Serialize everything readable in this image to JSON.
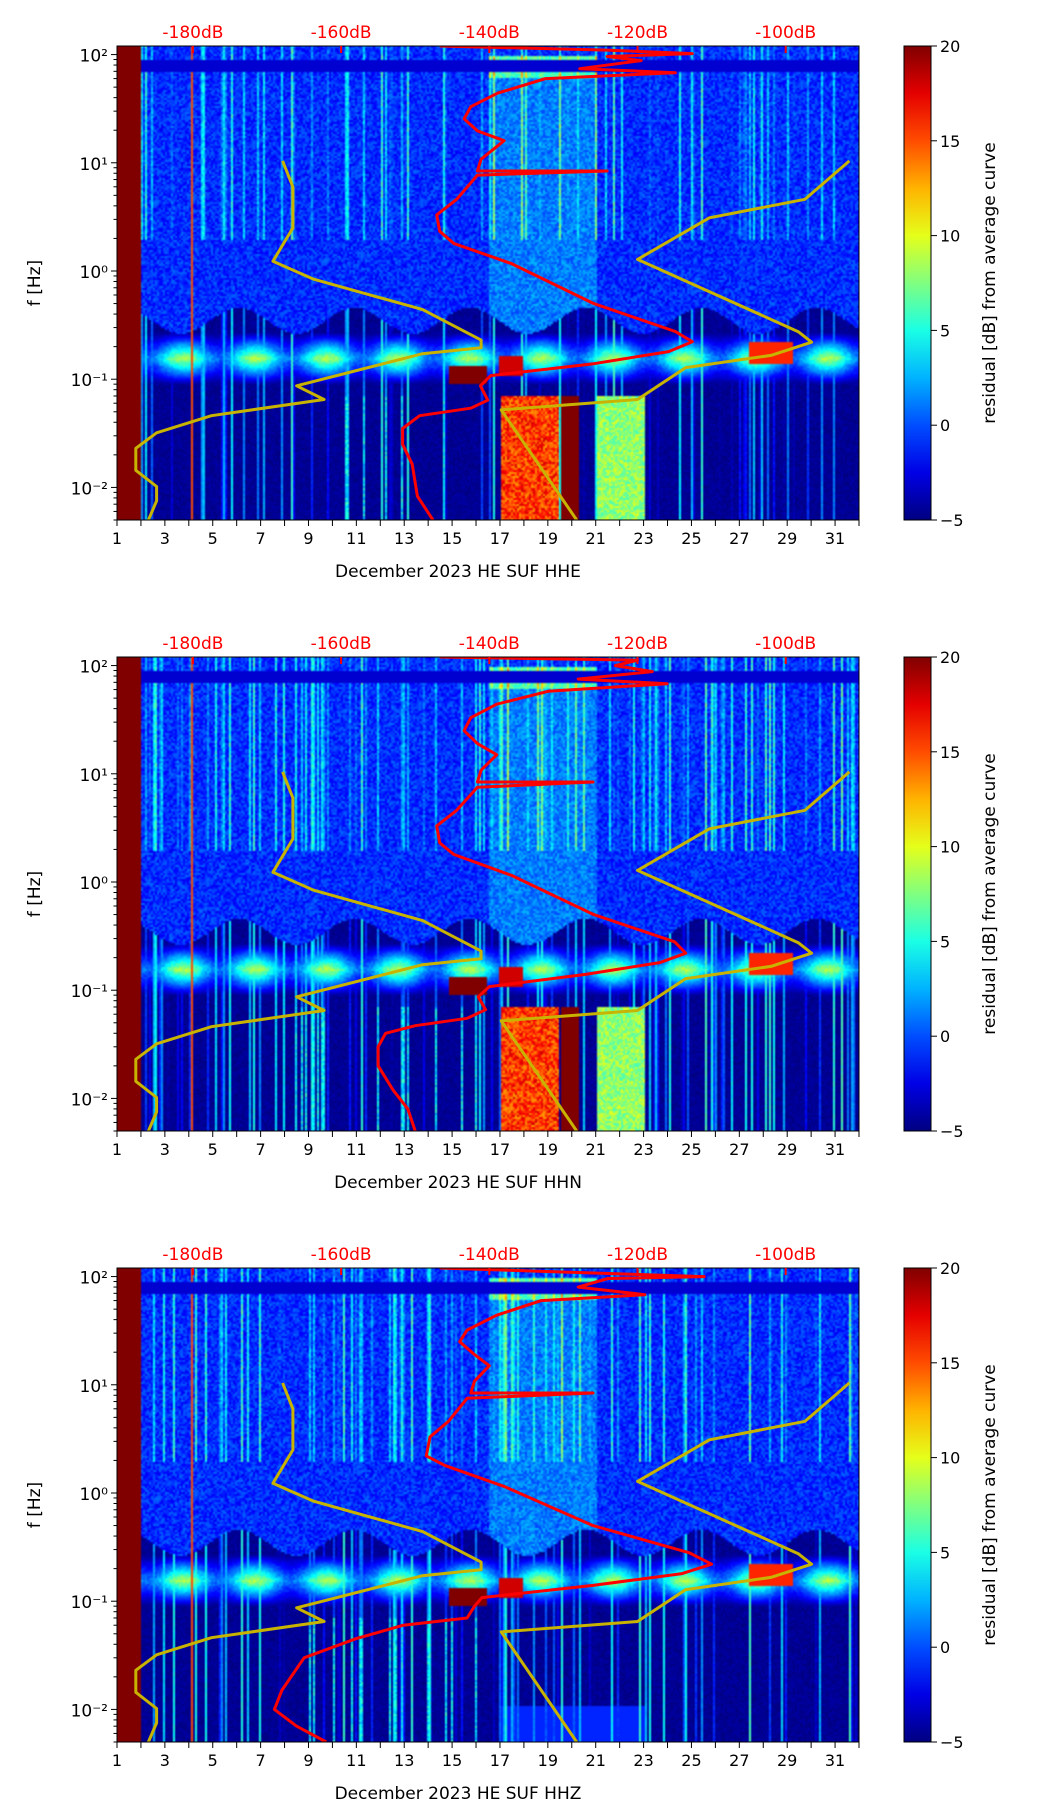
{
  "chart_data": [
    {
      "type": "heatmap",
      "title": "",
      "xlabel": "December 2023 HE SUF  HHE",
      "ylabel": "f [Hz]",
      "x_ticks": [
        "1",
        "3",
        "5",
        "7",
        "9",
        "11",
        "13",
        "15",
        "17",
        "19",
        "21",
        "23",
        "25",
        "27",
        "29",
        "31"
      ],
      "xlim": [
        1,
        32
      ],
      "y_ticks": [
        "10²",
        "10¹",
        "10⁰",
        "10⁻¹",
        "10⁻²"
      ],
      "ylim": [
        0.005,
        120
      ],
      "y_scale": "log",
      "top_axis_ticks": [
        "-180dB",
        "-160dB",
        "-140dB",
        "-120dB",
        "-100dB"
      ],
      "top_axis_range_db": [
        -180,
        -100
      ],
      "colorbar": {
        "label": "residual [dB] from average curve",
        "ticks": [
          "20",
          "15",
          "10",
          "5",
          "0",
          "−5"
        ],
        "range": [
          -5,
          20
        ],
        "colormap": "jet"
      },
      "psd_curve": {
        "color": "#ff0000",
        "points_db_hz": [
          [
            -146.7,
            120
          ],
          [
            -124.1,
            110
          ],
          [
            -112.6,
            102
          ],
          [
            -124.1,
            96
          ],
          [
            -119.5,
            88
          ],
          [
            -127.8,
            74
          ],
          [
            -114.9,
            68
          ],
          [
            -132.4,
            60
          ],
          [
            -138.9,
            44
          ],
          [
            -142.5,
            33
          ],
          [
            -143.4,
            25.5
          ],
          [
            -141.6,
            19.7
          ],
          [
            -138,
            16
          ],
          [
            -141.1,
            10.8
          ],
          [
            -141.6,
            8.4
          ],
          [
            -124.1,
            8.4
          ],
          [
            -141.6,
            7.7
          ],
          [
            -144.4,
            4.6
          ],
          [
            -147.1,
            3.3
          ],
          [
            -146.7,
            2.33
          ],
          [
            -144.8,
            1.8
          ],
          [
            -137,
            1.17
          ],
          [
            -125.9,
            0.5
          ],
          [
            -114.9,
            0.276
          ],
          [
            -112.6,
            0.222
          ],
          [
            -115.8,
            0.18
          ],
          [
            -125.9,
            0.139
          ],
          [
            -139.8,
            0.108
          ],
          [
            -141.2,
            0.087
          ],
          [
            -140.2,
            0.064
          ],
          [
            -142.5,
            0.054
          ],
          [
            -149.4,
            0.046
          ],
          [
            -151.7,
            0.035
          ],
          [
            -151.7,
            0.025
          ],
          [
            -150.4,
            0.0164
          ],
          [
            -149.7,
            0.0083
          ],
          [
            -147.6,
            0.005
          ]
        ]
      }
    },
    {
      "type": "heatmap",
      "title": "",
      "xlabel": "December 2023 HE SUF  HHN",
      "ylabel": "f [Hz]",
      "x_ticks": [
        "1",
        "3",
        "5",
        "7",
        "9",
        "11",
        "13",
        "15",
        "17",
        "19",
        "21",
        "23",
        "25",
        "27",
        "29",
        "31"
      ],
      "xlim": [
        1,
        32
      ],
      "y_ticks": [
        "10²",
        "10¹",
        "10⁰",
        "10⁻¹",
        "10⁻²"
      ],
      "ylim": [
        0.005,
        120
      ],
      "y_scale": "log",
      "top_axis_ticks": [
        "-180dB",
        "-160dB",
        "-140dB",
        "-120dB",
        "-100dB"
      ],
      "top_axis_range_db": [
        -180,
        -100
      ],
      "colorbar": {
        "label": "residual [dB] from average curve",
        "ticks": [
          "20",
          "15",
          "10",
          "5",
          "0",
          "−5"
        ],
        "range": [
          -5,
          20
        ],
        "colormap": "jet"
      },
      "psd_curve": {
        "color": "#ff0000",
        "points_db_hz": [
          [
            -146.7,
            120
          ],
          [
            -120,
            112
          ],
          [
            -123,
            100
          ],
          [
            -118,
            88
          ],
          [
            -128,
            75
          ],
          [
            -116,
            68
          ],
          [
            -132,
            58
          ],
          [
            -139,
            44
          ],
          [
            -142.5,
            33
          ],
          [
            -143.4,
            25
          ],
          [
            -141.6,
            19
          ],
          [
            -139,
            15
          ],
          [
            -141.1,
            10.8
          ],
          [
            -141.6,
            8.4
          ],
          [
            -126,
            8.4
          ],
          [
            -141.6,
            7.5
          ],
          [
            -144.4,
            4.6
          ],
          [
            -147.1,
            3.3
          ],
          [
            -146.7,
            2.3
          ],
          [
            -144.8,
            1.8
          ],
          [
            -137,
            1.15
          ],
          [
            -125.9,
            0.5
          ],
          [
            -115,
            0.28
          ],
          [
            -113.5,
            0.22
          ],
          [
            -117,
            0.18
          ],
          [
            -127,
            0.14
          ],
          [
            -140,
            0.108
          ],
          [
            -141.5,
            0.087
          ],
          [
            -140.5,
            0.066
          ],
          [
            -143,
            0.055
          ],
          [
            -150,
            0.047
          ],
          [
            -154,
            0.04
          ],
          [
            -155,
            0.03
          ],
          [
            -155,
            0.02
          ],
          [
            -153,
            0.012
          ],
          [
            -151,
            0.008
          ],
          [
            -150,
            0.005
          ]
        ]
      }
    },
    {
      "type": "heatmap",
      "title": "",
      "xlabel": "December 2023 HE SUF  HHZ",
      "ylabel": "f [Hz]",
      "x_ticks": [
        "1",
        "3",
        "5",
        "7",
        "9",
        "11",
        "13",
        "15",
        "17",
        "19",
        "21",
        "23",
        "25",
        "27",
        "29",
        "31"
      ],
      "xlim": [
        1,
        32
      ],
      "y_ticks": [
        "10²",
        "10¹",
        "10⁰",
        "10⁻¹",
        "10⁻²"
      ],
      "ylim": [
        0.005,
        120
      ],
      "y_scale": "log",
      "top_axis_ticks": [
        "-180dB",
        "-160dB",
        "-140dB",
        "-120dB",
        "-100dB"
      ],
      "top_axis_range_db": [
        -180,
        -100
      ],
      "colorbar": {
        "label": "residual [dB] from average curve",
        "ticks": [
          "20",
          "15",
          "10",
          "5",
          "0",
          "−5"
        ],
        "range": [
          -5,
          20
        ],
        "colormap": "jet"
      },
      "psd_curve": {
        "color": "#ff0000",
        "points_db_hz": [
          [
            -146.7,
            120
          ],
          [
            -111,
            100
          ],
          [
            -124,
            96
          ],
          [
            -128,
            80
          ],
          [
            -119,
            68
          ],
          [
            -133,
            60
          ],
          [
            -139,
            44
          ],
          [
            -143,
            32
          ],
          [
            -144,
            25
          ],
          [
            -142,
            19
          ],
          [
            -140,
            15
          ],
          [
            -142,
            10.8
          ],
          [
            -142.5,
            8.4
          ],
          [
            -126,
            8.4
          ],
          [
            -143,
            7.5
          ],
          [
            -145.5,
            4.6
          ],
          [
            -148,
            3.3
          ],
          [
            -148.5,
            2.2
          ],
          [
            -146,
            1.8
          ],
          [
            -138,
            1.15
          ],
          [
            -126,
            0.5
          ],
          [
            -113,
            0.28
          ],
          [
            -110,
            0.22
          ],
          [
            -114,
            0.18
          ],
          [
            -126,
            0.14
          ],
          [
            -141,
            0.108
          ],
          [
            -142,
            0.09
          ],
          [
            -143,
            0.07
          ],
          [
            -151.6,
            0.06
          ],
          [
            -158,
            0.045
          ],
          [
            -165,
            0.03
          ],
          [
            -168,
            0.015
          ],
          [
            -169,
            0.01
          ],
          [
            -166,
            0.007
          ],
          [
            -162,
            0.005
          ]
        ]
      }
    }
  ],
  "reference_curves": {
    "low_noise_model": {
      "color": "#c8b400",
      "points_db_hz": [
        [
          -167.9,
          10.4
        ],
        [
          -166.5,
          5.97
        ],
        [
          -166.5,
          2.5
        ],
        [
          -169.2,
          1.23
        ],
        [
          -163.7,
          0.84
        ],
        [
          -149,
          0.44
        ],
        [
          -141.1,
          0.23
        ],
        [
          -141.1,
          0.195
        ],
        [
          -149,
          0.172
        ],
        [
          -166,
          0.087
        ],
        [
          -162.3,
          0.065
        ],
        [
          -177.5,
          0.046
        ],
        [
          -184.9,
          0.032
        ],
        [
          -187.7,
          0.023
        ],
        [
          -187.7,
          0.0144
        ],
        [
          -184.9,
          0.0102
        ],
        [
          -184.9,
          0.0075
        ],
        [
          -186,
          0.005
        ]
      ]
    },
    "high_noise_model": {
      "color": "#c8b400",
      "points_db_hz": [
        [
          -91.4,
          10.4
        ],
        [
          -97.4,
          4.6
        ],
        [
          -110.3,
          3.1
        ],
        [
          -120,
          1.28
        ],
        [
          -98.3,
          0.275
        ],
        [
          -96.5,
          0.22
        ],
        [
          -102,
          0.166
        ],
        [
          -113.5,
          0.128
        ],
        [
          -120,
          0.065
        ],
        [
          -138.4,
          0.052
        ],
        [
          -128.2,
          0.005
        ]
      ]
    }
  }
}
